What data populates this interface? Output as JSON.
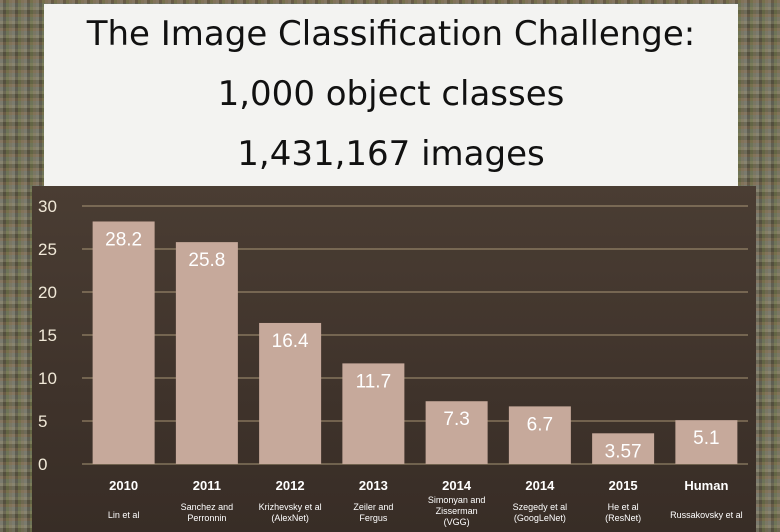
{
  "title": {
    "line1": "The Image Classification Challenge:",
    "line2": "1,000 object classes",
    "line3": "1,431,167 images"
  },
  "colors": {
    "bar": "#c6a99b",
    "chart_background": "#3f332b",
    "gridline": "#c9b48c",
    "text": "#ffffff"
  },
  "chart_data": {
    "type": "bar",
    "ylim": [
      0,
      30
    ],
    "yticks": [
      0,
      5,
      10,
      15,
      20,
      25,
      30
    ],
    "grid": true,
    "categories": [
      "2010",
      "2011",
      "2012",
      "2013",
      "2014",
      "2014",
      "2015",
      "Human"
    ],
    "values": [
      28.2,
      25.8,
      16.4,
      11.7,
      7.3,
      6.7,
      3.57,
      5.1
    ],
    "value_labels": [
      "28.2",
      "25.8",
      "16.4",
      "11.7",
      "7.3",
      "6.7",
      "3.57",
      "5.1"
    ],
    "subtitles": [
      [
        "Lin et al"
      ],
      [
        "Sanchez and",
        "Perronnin"
      ],
      [
        "Krizhevsky et al",
        "(AlexNet)"
      ],
      [
        "Zeiler and",
        "Fergus"
      ],
      [
        "Simonyan and",
        "Zisserman",
        "(VGG)"
      ],
      [
        "Szegedy et al",
        "(GoogLeNet)"
      ],
      [
        "He et al",
        "(ResNet)"
      ],
      [
        "Russakovsky et al"
      ]
    ]
  }
}
